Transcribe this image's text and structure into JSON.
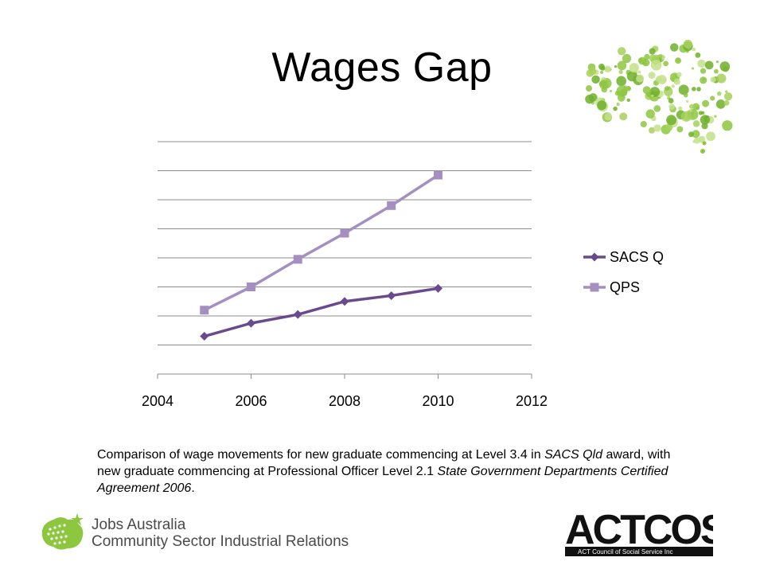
{
  "title": "Wages Gap",
  "caption": {
    "part1": "Comparison of wage movements for new graduate commencing at Level 3.4 in ",
    "em1": "SACS Qld",
    "part2": " award, with new graduate commencing at Professional Officer Level 2.1 ",
    "em2": "State Government Departments Certified Agreement 2006",
    "part3": "."
  },
  "logos": {
    "jobs_line1": "Jobs Australia",
    "jobs_line2": "Community Sector Industrial Relations",
    "actcoss_text": "ACTCOSS",
    "actcoss_sub": "ACT Council of Social Service Inc"
  },
  "colors": {
    "sacs": "#6a4a8c",
    "qps": "#a48fc0",
    "grid": "#8c8c8c",
    "green": "#8dc63f"
  },
  "chart_data": {
    "type": "line",
    "xlim": [
      2004,
      2012
    ],
    "x_ticks": [
      2004,
      2006,
      2008,
      2010,
      2012
    ],
    "ylim": [
      0,
      8
    ],
    "y_gridlines": [
      1,
      2,
      3,
      4,
      5,
      6,
      7,
      8
    ],
    "grid": true,
    "legend_position": "right",
    "series": [
      {
        "name": "SACS Q",
        "marker": "diamond",
        "x": [
          2005,
          2006,
          2007,
          2008,
          2009,
          2010
        ],
        "values": [
          1.3,
          1.75,
          2.05,
          2.5,
          2.7,
          2.95
        ]
      },
      {
        "name": "QPS",
        "marker": "square",
        "x": [
          2005,
          2006,
          2007,
          2008,
          2009,
          2010
        ],
        "values": [
          2.2,
          3.0,
          3.95,
          4.85,
          5.8,
          6.85
        ]
      }
    ]
  }
}
